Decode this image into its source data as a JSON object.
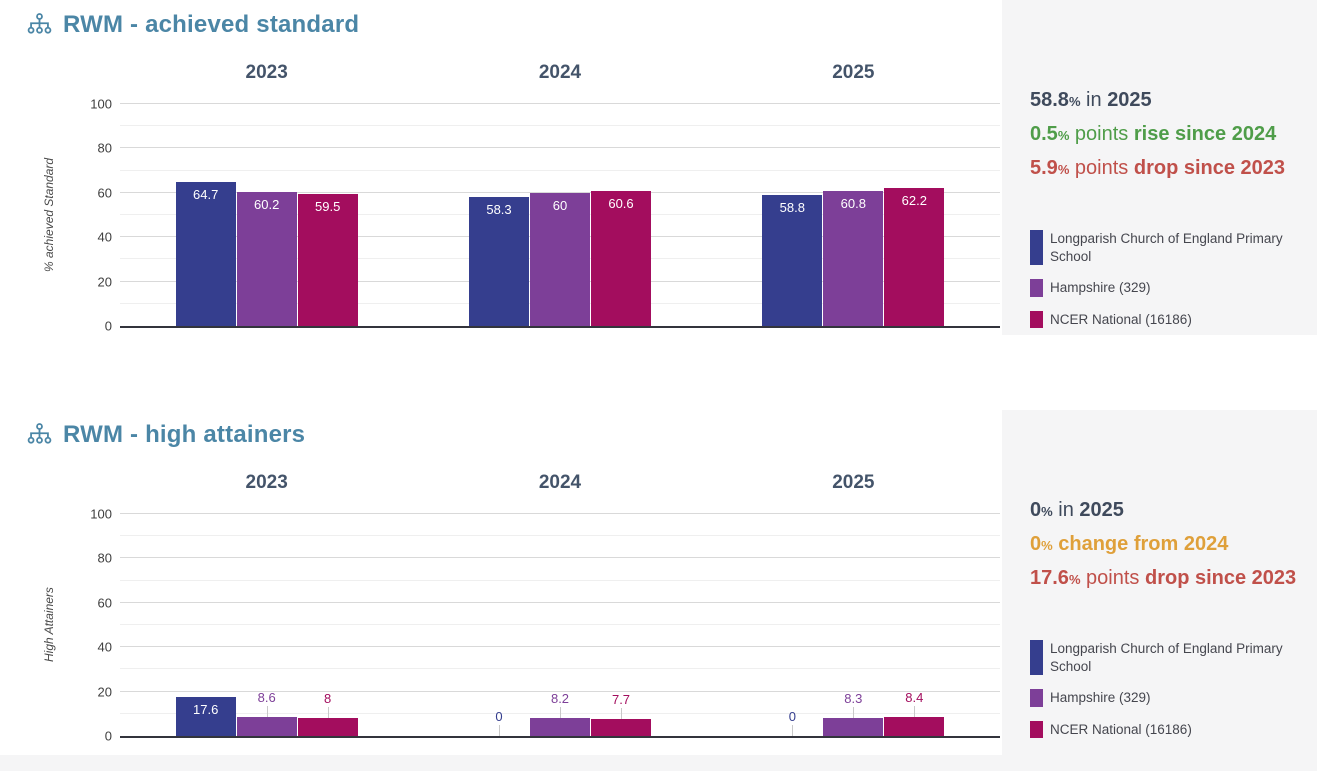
{
  "page": {
    "colors": {
      "title": "#4b86a6",
      "year_header": "#44546a",
      "grid_major": "#d9d9d9",
      "grid_minor": "#efefef",
      "axis_line": "#33343c",
      "panel_bg": "#f5f5f6",
      "annotation_dark": "#3f4a5c",
      "annotation_green": "#4f9d49",
      "annotation_red": "#c0504a",
      "annotation_orange": "#dfa03a"
    }
  },
  "chart_data": [
    {
      "type": "bar",
      "title": "RWM - achieved standard",
      "ylabel": "% achieved Standard",
      "ylim": [
        0,
        100
      ],
      "ytick_step_major": 20,
      "ytick_step_minor": 10,
      "grid": true,
      "legend_position": "right",
      "categories": [
        "2023",
        "2024",
        "2025"
      ],
      "series": [
        {
          "name": "Longparish Church of England Primary School",
          "color": "#353e8e",
          "values": [
            64.7,
            58.3,
            58.8
          ],
          "labels": [
            "64.7",
            "58.3",
            "58.8"
          ]
        },
        {
          "name": "Hampshire (329)",
          "color": "#7d3f98",
          "values": [
            60.2,
            60,
            60.8
          ],
          "labels": [
            "60.2",
            "60",
            "60.8"
          ]
        },
        {
          "name": "NCER National (16186)",
          "color": "#a30d5e",
          "values": [
            59.5,
            60.6,
            62.2
          ],
          "labels": [
            "59.5",
            "60.6",
            "62.2"
          ]
        }
      ],
      "annotations": [
        {
          "color": "#3f4a5c",
          "parts": [
            {
              "text": "58.8",
              "bold": true
            },
            {
              "text": "%",
              "small": true
            },
            {
              "text": " in ",
              "bold": false
            },
            {
              "text": "2025",
              "bold": true
            }
          ]
        },
        {
          "color": "#4f9d49",
          "parts": [
            {
              "text": "0.5",
              "bold": true
            },
            {
              "text": "%",
              "small": true
            },
            {
              "text": " points ",
              "bold": false
            },
            {
              "text": "rise since 2024",
              "bold": true
            }
          ]
        },
        {
          "color": "#c0504a",
          "parts": [
            {
              "text": "5.9",
              "bold": true
            },
            {
              "text": "%",
              "small": true
            },
            {
              "text": " points ",
              "bold": false
            },
            {
              "text": "drop since 2023",
              "bold": true
            }
          ]
        }
      ]
    },
    {
      "type": "bar",
      "title": "RWM - high attainers",
      "ylabel": "High Attainers",
      "ylim": [
        0,
        100
      ],
      "ytick_step_major": 20,
      "ytick_step_minor": 10,
      "grid": true,
      "legend_position": "right",
      "categories": [
        "2023",
        "2024",
        "2025"
      ],
      "series": [
        {
          "name": "Longparish Church of England Primary School",
          "color": "#353e8e",
          "values": [
            17.6,
            0,
            0
          ],
          "labels": [
            "17.6",
            "0",
            "0"
          ]
        },
        {
          "name": "Hampshire (329)",
          "color": "#7d3f98",
          "values": [
            8.6,
            8.2,
            8.3
          ],
          "labels": [
            "8.6",
            "8.2",
            "8.3"
          ]
        },
        {
          "name": "NCER National (16186)",
          "color": "#a30d5e",
          "values": [
            8,
            7.7,
            8.4
          ],
          "labels": [
            "8",
            "7.7",
            "8.4"
          ]
        }
      ],
      "annotations": [
        {
          "color": "#3f4a5c",
          "parts": [
            {
              "text": "0",
              "bold": true
            },
            {
              "text": "%",
              "small": true
            },
            {
              "text": " in ",
              "bold": false
            },
            {
              "text": "2025",
              "bold": true
            }
          ]
        },
        {
          "color": "#dfa03a",
          "parts": [
            {
              "text": "0",
              "bold": true
            },
            {
              "text": "%",
              "small": true
            },
            {
              "text": " ",
              "bold": false
            },
            {
              "text": "change from 2024",
              "bold": true
            }
          ]
        },
        {
          "color": "#c0504a",
          "parts": [
            {
              "text": "17.6",
              "bold": true
            },
            {
              "text": "%",
              "small": true
            },
            {
              "text": " points ",
              "bold": false
            },
            {
              "text": "drop since 2023",
              "bold": true
            }
          ]
        }
      ]
    }
  ]
}
